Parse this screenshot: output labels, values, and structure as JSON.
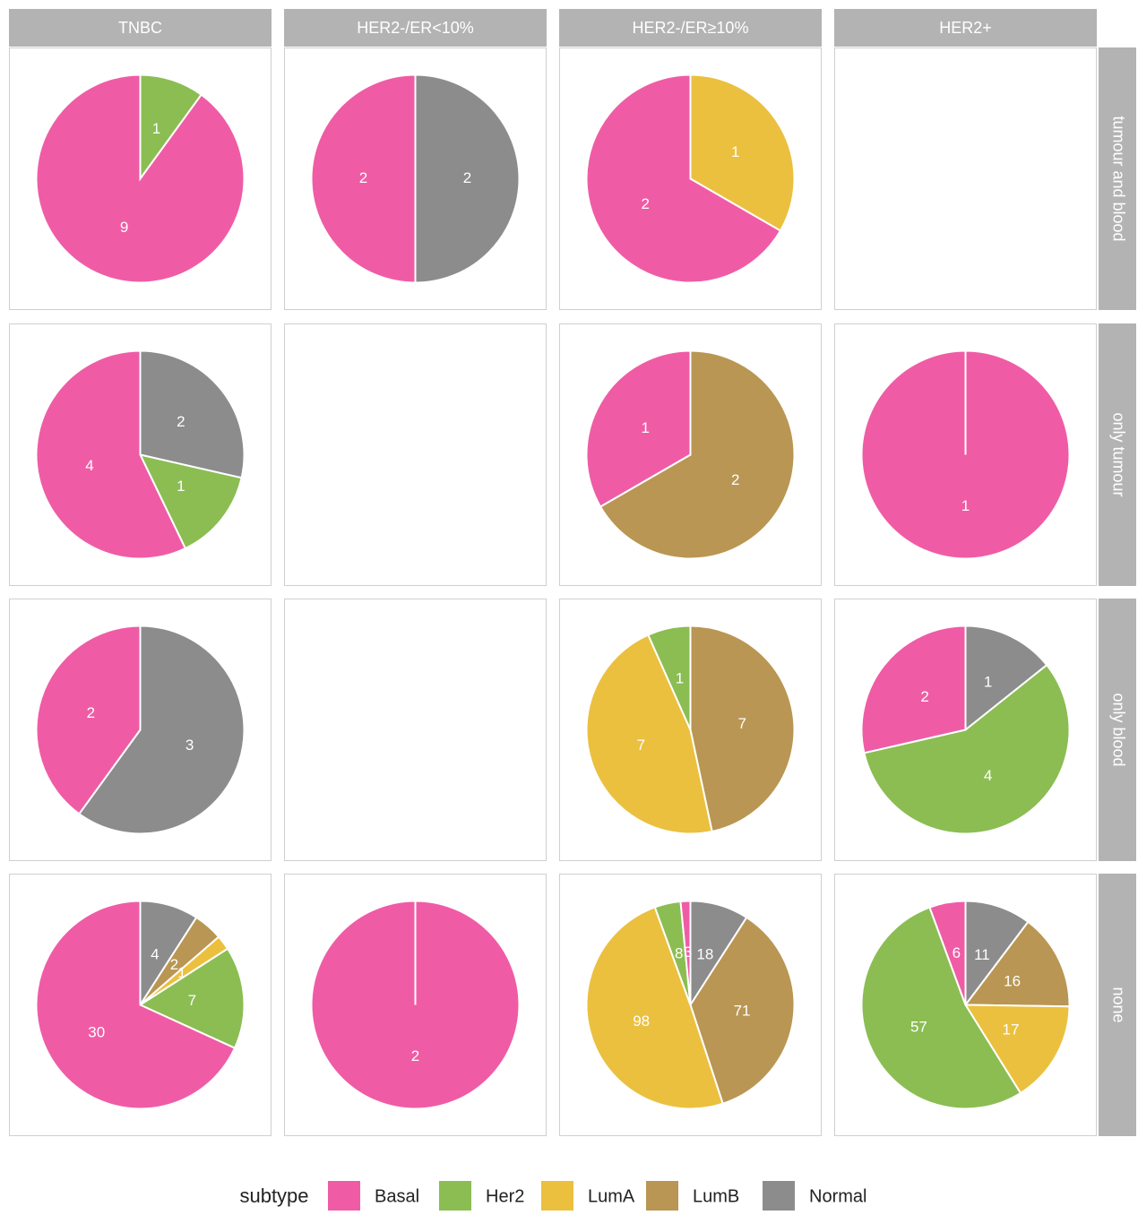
{
  "chart_data": {
    "type": "pie",
    "col_labels": [
      "TNBC",
      "HER2-/ER<10%",
      "HER2-/ER≥10%",
      "HER2+"
    ],
    "row_labels": [
      "tumour and blood",
      "only tumour",
      "only blood",
      "none"
    ],
    "legend_title": "subtype",
    "series": [
      {
        "name": "Basal",
        "color": "#ef5ca5"
      },
      {
        "name": "Her2",
        "color": "#8bbd53"
      },
      {
        "name": "LumA",
        "color": "#ebc03f"
      },
      {
        "name": "LumB",
        "color": "#b99653"
      },
      {
        "name": "Normal",
        "color": "#8c8c8c"
      }
    ],
    "panels": [
      [
        [
          9,
          1,
          null,
          null,
          null
        ],
        [
          2,
          null,
          null,
          null,
          2
        ],
        [
          2,
          null,
          1,
          null,
          null
        ],
        null
      ],
      [
        [
          4,
          1,
          null,
          null,
          2
        ],
        null,
        [
          1,
          null,
          null,
          2,
          null
        ],
        [
          1,
          null,
          null,
          null,
          null
        ]
      ],
      [
        [
          2,
          null,
          null,
          null,
          3
        ],
        null,
        [
          null,
          1,
          7,
          7,
          null
        ],
        [
          2,
          4,
          null,
          null,
          1
        ]
      ],
      [
        [
          30,
          7,
          1,
          2,
          4
        ],
        [
          2,
          null,
          null,
          null,
          null
        ],
        [
          3,
          8,
          98,
          71,
          18
        ],
        [
          6,
          57,
          17,
          16,
          11
        ]
      ]
    ]
  }
}
